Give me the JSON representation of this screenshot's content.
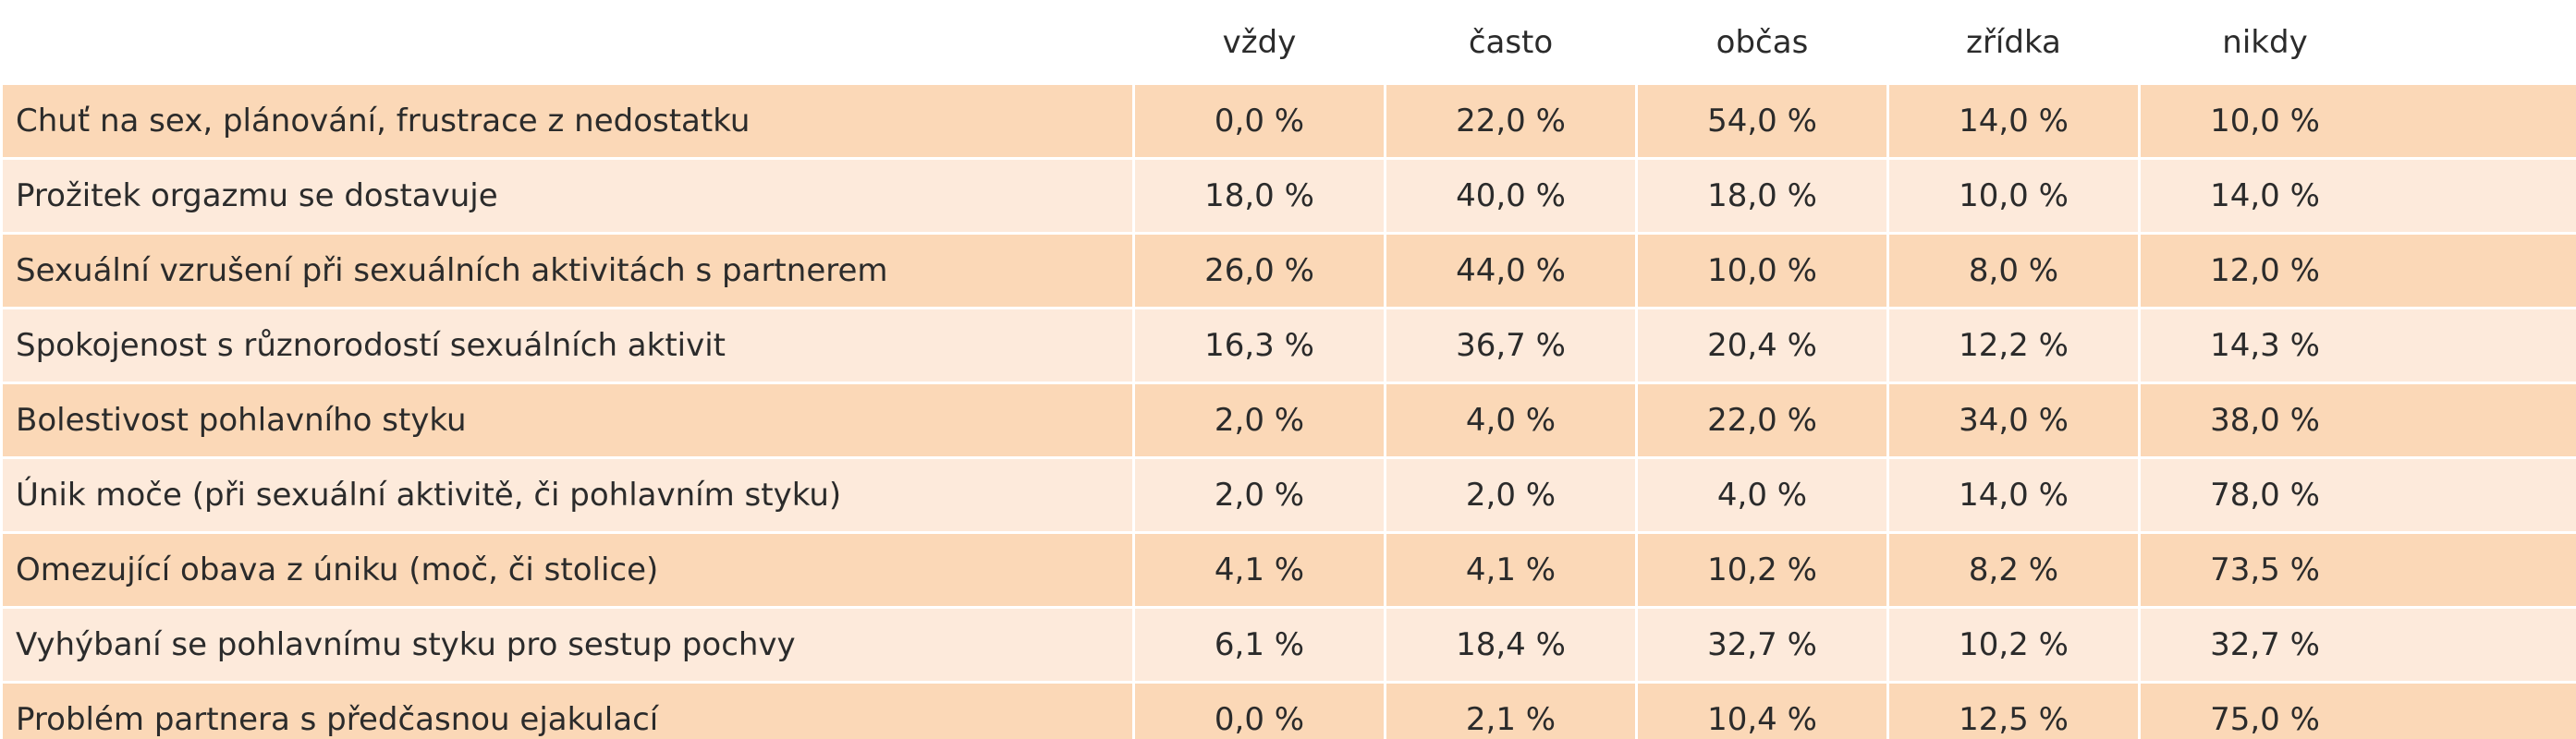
{
  "table": {
    "columns": [
      "vždy",
      "často",
      "občas",
      "zřídka",
      "nikdy"
    ],
    "rows": [
      [
        "Chuť na sex, plánování, frustrace z nedostatku",
        "0,0 %",
        "22,0 %",
        "54,0 %",
        "14,0 %",
        "10,0 %"
      ],
      [
        "Prožitek orgazmu se dostavuje",
        "18,0 %",
        "40,0 %",
        "18,0 %",
        "10,0 %",
        "14,0 %"
      ],
      [
        "Sexuální vzrušení při sexuálních aktivitách s partnerem",
        "26,0 %",
        "44,0 %",
        "10,0 %",
        "8,0 %",
        "12,0 %"
      ],
      [
        "Spokojenost s různorodostí sexuálních aktivit",
        "16,3 %",
        "36,7 %",
        "20,4 %",
        "12,2 %",
        "14,3 %"
      ],
      [
        "Bolestivost pohlavního styku",
        "2,0 %",
        "4,0 %",
        "22,0 %",
        "34,0 %",
        "38,0 %"
      ],
      [
        "Únik moče (při sexuální aktivitě, či pohlavním styku)",
        "2,0 %",
        "2,0 %",
        "4,0 %",
        "14,0 %",
        "78,0 %"
      ],
      [
        "Omezující obava z úniku (moč, či stolice)",
        "4,1 %",
        "4,1 %",
        "10,2 %",
        "8,2 %",
        "73,5 %"
      ],
      [
        "Vyhýbaní se pohlavnímu styku pro sestup pochvy",
        "6,1 %",
        "18,4 %",
        "32,7 %",
        "10,2 %",
        "32,7 %"
      ],
      [
        "Problém partnera s předčasnou ejakulací",
        "0,0 %",
        "2,1 %",
        "10,4 %",
        "12,5 %",
        "75,0 %"
      ]
    ]
  }
}
